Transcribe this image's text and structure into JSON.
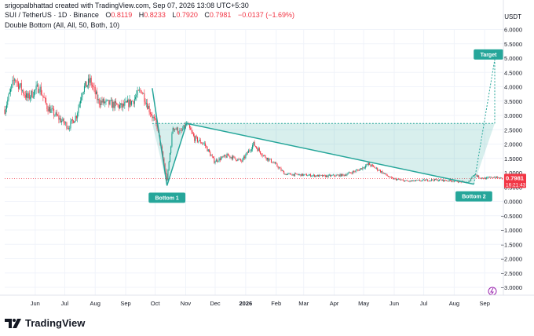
{
  "header": {
    "credit": "srigopalbhattad created with TradingView.com, Sep 07, 2026 13:08 UTC+5:30"
  },
  "symbol": {
    "title": "SUI / TetherUS · 1D · Binance",
    "open_label": "O",
    "open": "0.8119",
    "high_label": "H",
    "high": "0.8233",
    "low_label": "L",
    "low": "0.7920",
    "close_label": "C",
    "close": "0.7981",
    "change": "−0.0137 (−1.69%)"
  },
  "indicator": {
    "label": "Double Bottom (All, All, 50, Both, 10)"
  },
  "footer": {
    "brand": "TradingView"
  },
  "colors": {
    "up": "#089981",
    "down": "#f23645",
    "pattern": "#26a69a",
    "fill": "rgba(38,166,154,0.18)"
  },
  "chart_data": {
    "type": "candlestick",
    "currency": "USDT",
    "ylim": [
      -3.2,
      6.4
    ],
    "y_ticks": [
      "6.0000",
      "5.5000",
      "5.0000",
      "4.5000",
      "4.0000",
      "3.5000",
      "3.0000",
      "2.5000",
      "2.0000",
      "1.5000",
      "1.0000",
      "0.5000",
      "0.0000",
      "−0.5000",
      "−1.0000",
      "−1.5000",
      "−2.0000",
      "−2.5000",
      "−3.0000"
    ],
    "y_tick_values": [
      6,
      5.5,
      5,
      4.5,
      4,
      3.5,
      3,
      2.5,
      2,
      1.5,
      1,
      0.5,
      0,
      -0.5,
      -1,
      -1.5,
      -2,
      -2.5,
      -3
    ],
    "x_ticks": [
      {
        "label": "Jun",
        "day": 16
      },
      {
        "label": "Jul",
        "day": 46
      },
      {
        "label": "Aug",
        "day": 77
      },
      {
        "label": "Sep",
        "day": 108
      },
      {
        "label": "Oct",
        "day": 138
      },
      {
        "label": "Nov",
        "day": 169
      },
      {
        "label": "Dec",
        "day": 199
      },
      {
        "label": "2026",
        "day": 230,
        "bold": true
      },
      {
        "label": "Feb",
        "day": 261
      },
      {
        "label": "Mar",
        "day": 289
      },
      {
        "label": "Apr",
        "day": 320
      },
      {
        "label": "May",
        "day": 350
      },
      {
        "label": "Jun",
        "day": 381
      },
      {
        "label": "Jul",
        "day": 411
      },
      {
        "label": "Aug",
        "day": 442
      },
      {
        "label": "Sep",
        "day": 473
      }
    ],
    "day_range": [
      -15,
      492
    ],
    "last_price": {
      "value": 0.7981,
      "label": "0.7981",
      "countdown": "16:21:43"
    },
    "price_path": [
      [
        -15,
        3.2
      ],
      [
        -5,
        4.3
      ],
      [
        8,
        3.6
      ],
      [
        20,
        4.0
      ],
      [
        28,
        3.3
      ],
      [
        40,
        2.9
      ],
      [
        50,
        2.6
      ],
      [
        58,
        3.0
      ],
      [
        64,
        3.9
      ],
      [
        72,
        4.2
      ],
      [
        80,
        3.5
      ],
      [
        92,
        3.4
      ],
      [
        104,
        3.3
      ],
      [
        115,
        3.5
      ],
      [
        124,
        3.9
      ],
      [
        132,
        3.2
      ],
      [
        140,
        2.6
      ],
      [
        146,
        1.5
      ],
      [
        150,
        0.75
      ],
      [
        156,
        2.6
      ],
      [
        164,
        2.4
      ],
      [
        170,
        2.7
      ],
      [
        178,
        2.2
      ],
      [
        188,
        2.0
      ],
      [
        198,
        1.4
      ],
      [
        212,
        1.6
      ],
      [
        226,
        1.4
      ],
      [
        238,
        2.0
      ],
      [
        248,
        1.6
      ],
      [
        260,
        1.3
      ],
      [
        270,
        0.95
      ],
      [
        290,
        0.92
      ],
      [
        310,
        0.88
      ],
      [
        330,
        0.92
      ],
      [
        345,
        1.1
      ],
      [
        355,
        1.3
      ],
      [
        365,
        1.1
      ],
      [
        378,
        0.8
      ],
      [
        395,
        0.7
      ],
      [
        420,
        0.75
      ],
      [
        440,
        0.72
      ],
      [
        456,
        0.65
      ],
      [
        462,
        0.95
      ],
      [
        468,
        0.83
      ],
      [
        474,
        0.8
      ],
      [
        482,
        0.85
      ],
      [
        490,
        0.8
      ]
    ],
    "pattern": {
      "points": [
        [
          135,
          3.95
        ],
        [
          150,
          0.55
        ],
        [
          170,
          2.72
        ],
        [
          462,
          0.6
        ]
      ],
      "neckline": 2.72,
      "target": 4.95,
      "target_label": "Target",
      "bottom1_label": "Bottom 1",
      "bottom2_label": "Bottom 2",
      "bottom1_day": 150,
      "bottom2_day": 462
    }
  }
}
